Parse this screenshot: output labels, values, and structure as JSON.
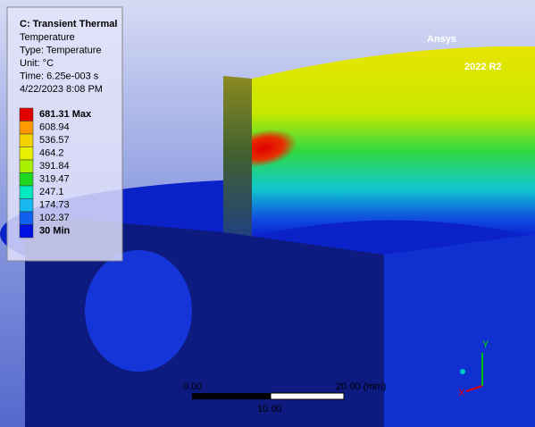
{
  "window": {
    "legend": {
      "title": "C: Transient Thermal",
      "lines": [
        "Temperature",
        "Type: Temperature",
        "Unit: °C",
        "Time: 6.25e-003 s",
        "4/22/2023 8:08 PM"
      ],
      "entries": [
        {
          "label": "681.31 Max",
          "color": "#e00000"
        },
        {
          "label": "608.94",
          "color": "#ff9a00"
        },
        {
          "label": "536.57",
          "color": "#f2d200"
        },
        {
          "label": "464.2",
          "color": "#e6f000"
        },
        {
          "label": "391.84",
          "color": "#a8f000"
        },
        {
          "label": "319.47",
          "color": "#20d820"
        },
        {
          "label": "247.1",
          "color": "#00e8c0"
        },
        {
          "label": "174.73",
          "color": "#18b8f0"
        },
        {
          "label": "102.37",
          "color": "#1060f0"
        },
        {
          "label": "30 Min",
          "color": "#0010e0"
        }
      ]
    },
    "logo": {
      "name": "Ansys",
      "version": "2022 R2"
    },
    "scale_bar": {
      "start": "0.00",
      "end": "20.00 (mm)",
      "mid": "10.00"
    },
    "triad": {
      "y": "Y",
      "x": "X"
    }
  }
}
